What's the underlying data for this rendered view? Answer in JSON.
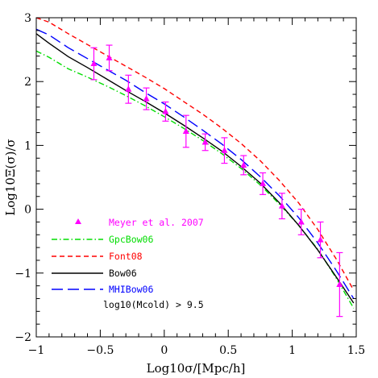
{
  "chart_data": {
    "type": "line",
    "xlabel": "Log10σ/[Mpc/h]",
    "ylabel": "Log10Ξ(σ)/σ",
    "xlim": [
      -1,
      1.5
    ],
    "ylim": [
      -2,
      3
    ],
    "x_ticks": [
      "−1",
      "−0.5",
      "0",
      "0.5",
      "1",
      "1.5"
    ],
    "y_ticks": [
      "−2",
      "−1",
      "0",
      "1",
      "2",
      "3"
    ],
    "x_tick_values": [
      -1,
      -0.5,
      0,
      0.5,
      1,
      1.5
    ],
    "y_tick_values": [
      -2,
      -1,
      0,
      1,
      2,
      3
    ],
    "grid": false,
    "legend_position": "bottom-left",
    "annotation": "log10(Mcold) > 9.5",
    "series": [
      {
        "name": "Meyer et al. 2007",
        "kind": "points",
        "color": "#ff00ff",
        "x": [
          -0.55,
          -0.43,
          -0.28,
          -0.14,
          0.01,
          0.17,
          0.32,
          0.47,
          0.62,
          0.77,
          0.92,
          1.07,
          1.22,
          1.37
        ],
        "y": [
          2.28,
          2.37,
          1.88,
          1.73,
          1.53,
          1.22,
          1.05,
          0.92,
          0.69,
          0.4,
          0.05,
          -0.2,
          -0.48,
          -1.18
        ],
        "yerr": [
          0.25,
          0.2,
          0.22,
          0.17,
          0.15,
          0.25,
          0.13,
          0.2,
          0.15,
          0.17,
          0.2,
          0.2,
          0.28,
          0.5
        ]
      },
      {
        "name": "GpcBow06",
        "kind": "dashdot",
        "color": "#00dd00",
        "x": [
          -1.0,
          -0.9,
          -0.75,
          -0.6,
          -0.45,
          -0.3,
          -0.15,
          0.0,
          0.15,
          0.3,
          0.45,
          0.6,
          0.75,
          0.9,
          1.05,
          1.2,
          1.35,
          1.48
        ],
        "y": [
          2.48,
          2.38,
          2.2,
          2.07,
          1.93,
          1.78,
          1.62,
          1.45,
          1.27,
          1.08,
          0.87,
          0.64,
          0.38,
          0.08,
          -0.25,
          -0.63,
          -1.1,
          -1.55
        ]
      },
      {
        "name": "Font08",
        "kind": "shortdash",
        "color": "#ff0000",
        "x": [
          -1.0,
          -0.9,
          -0.75,
          -0.6,
          -0.45,
          -0.3,
          -0.15,
          0.0,
          0.15,
          0.3,
          0.45,
          0.6,
          0.75,
          0.9,
          1.05,
          1.2,
          1.35,
          1.48
        ],
        "y": [
          3.0,
          2.93,
          2.75,
          2.58,
          2.41,
          2.24,
          2.07,
          1.89,
          1.69,
          1.49,
          1.27,
          1.03,
          0.76,
          0.45,
          0.1,
          -0.32,
          -0.8,
          -1.27
        ]
      },
      {
        "name": "Bow06",
        "kind": "solid",
        "color": "#000000",
        "x": [
          -1.0,
          -0.9,
          -0.75,
          -0.6,
          -0.45,
          -0.3,
          -0.15,
          0.0,
          0.15,
          0.3,
          0.45,
          0.6,
          0.75,
          0.9,
          1.05,
          1.2,
          1.35,
          1.48
        ],
        "y": [
          2.75,
          2.6,
          2.39,
          2.22,
          2.04,
          1.86,
          1.69,
          1.51,
          1.32,
          1.12,
          0.91,
          0.67,
          0.41,
          0.1,
          -0.25,
          -0.64,
          -1.08,
          -1.47
        ]
      },
      {
        "name": "MHIBow06",
        "kind": "longdash",
        "color": "#0000ff",
        "x": [
          -1.0,
          -0.9,
          -0.75,
          -0.6,
          -0.45,
          -0.3,
          -0.15,
          0.0,
          0.15,
          0.3,
          0.45,
          0.6,
          0.75,
          0.9,
          1.05,
          1.2,
          1.35,
          1.48
        ],
        "y": [
          2.82,
          2.73,
          2.53,
          2.36,
          2.19,
          2.02,
          1.83,
          1.65,
          1.45,
          1.24,
          1.02,
          0.78,
          0.51,
          0.21,
          -0.13,
          -0.53,
          -0.98,
          -1.4
        ]
      }
    ]
  }
}
